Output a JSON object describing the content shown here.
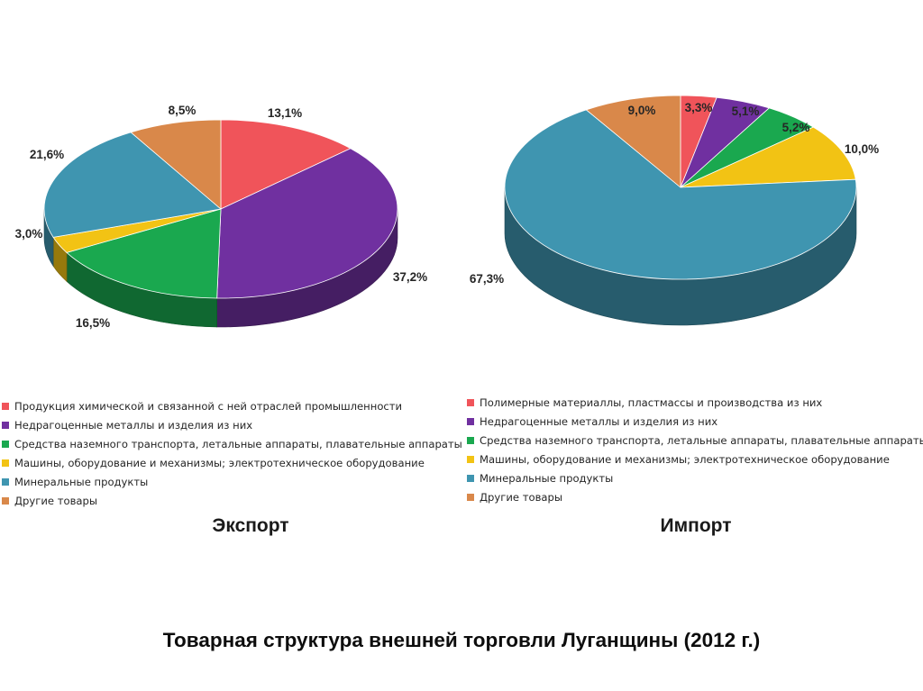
{
  "page": {
    "title": "Товарная структура внешней торговли Луганщины  (2012 г.)"
  },
  "chart_data": [
    {
      "type": "pie",
      "subtitle": "Экспорт",
      "slices": [
        {
          "label": "Продукция химической и связанной с ней отраслей промышленности",
          "value": 13.1,
          "text": "13,1%",
          "color": "#f0545a"
        },
        {
          "label": "Недрагоценные металлы и изделия из них",
          "value": 37.2,
          "text": "37,2%",
          "color": "#7030a0"
        },
        {
          "label": "Средства наземного транспорта, летальные аппараты, плавательные аппараты",
          "value": 16.5,
          "text": "16,5%",
          "color": "#1aa84f"
        },
        {
          "label": "Машины, оборудование и механизмы; электротехническое оборудование",
          "value": 3.0,
          "text": "3,0%",
          "color": "#f2c314"
        },
        {
          "label": "Минеральные продукты",
          "value": 21.6,
          "text": "21,6%",
          "color": "#3f95b0"
        },
        {
          "label": "Другие товары",
          "value": 8.5,
          "text": "8,5%",
          "color": "#d9884a"
        }
      ]
    },
    {
      "type": "pie",
      "subtitle": "Импорт",
      "slices": [
        {
          "label": "Полимерные материаллы, пластмассы и производства из них",
          "value": 3.3,
          "text": "3,3%",
          "color": "#f0545a"
        },
        {
          "label": "Недрагоценные металлы и изделия из них",
          "value": 5.1,
          "text": "5,1%",
          "color": "#7030a0"
        },
        {
          "label": "Средства наземного транспорта, летальные аппараты, плавательные аппараты",
          "value": 5.2,
          "text": "5,2%",
          "color": "#1aa84f"
        },
        {
          "label": "Машины, оборудование и механизмы; электротехническое оборудование",
          "value": 10.0,
          "text": "10,0%",
          "color": "#f2c314"
        },
        {
          "label": "Минеральные продукты",
          "value": 67.3,
          "text": "67,3%",
          "color": "#3f95b0"
        },
        {
          "label": "Другие товары",
          "value": 9.0,
          "text": "9,0%",
          "color": "#d9884a"
        }
      ]
    }
  ]
}
